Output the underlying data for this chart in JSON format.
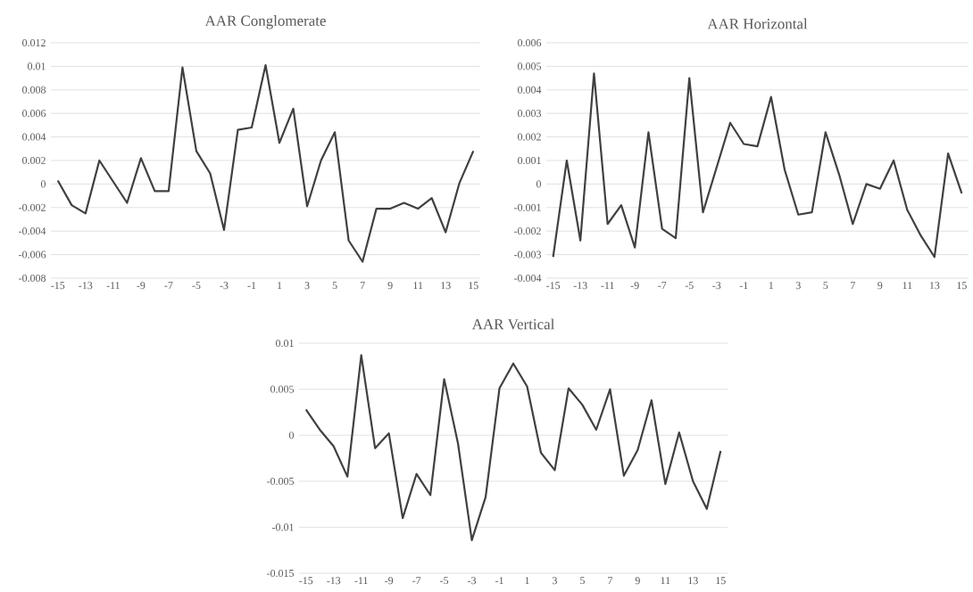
{
  "chart_data": [
    {
      "type": "line",
      "title": "AAR Conglomerate",
      "categories": [
        "-15",
        null,
        "-13",
        null,
        "-11",
        null,
        "-9",
        null,
        "-7",
        null,
        "-5",
        null,
        "-3",
        null,
        "-1",
        null,
        "1",
        null,
        "3",
        null,
        "5",
        null,
        "7",
        null,
        "9",
        null,
        "11",
        null,
        "13",
        null,
        "15"
      ],
      "values": [
        0.0003,
        -0.0018,
        -0.0025,
        0.002,
        0.0002,
        -0.0016,
        0.0022,
        -0.0006,
        -0.0006,
        0.0099,
        0.0028,
        0.0009,
        -0.0039,
        0.0046,
        0.0048,
        0.0101,
        0.0035,
        0.0064,
        -0.0019,
        0.002,
        0.0044,
        -0.0048,
        -0.0066,
        -0.0021,
        -0.0021,
        -0.0016,
        -0.0021,
        -0.0012,
        -0.0041,
        0.0001,
        0.0028
      ],
      "color": "#404040",
      "ylim": [
        -0.008,
        0.012
      ],
      "yticks": [
        -0.008,
        -0.006,
        -0.004,
        -0.002,
        0,
        0.002,
        0.004,
        0.006,
        0.008,
        0.01,
        0.012
      ],
      "grid": "y"
    },
    {
      "type": "line",
      "title": "AAR Horizontal",
      "categories": [
        "-15",
        null,
        "-13",
        null,
        "-11",
        null,
        "-9",
        null,
        "-7",
        null,
        "-5",
        null,
        "-3",
        null,
        "-1",
        null,
        "1",
        null,
        "3",
        null,
        "5",
        null,
        "7",
        null,
        "9",
        null,
        "11",
        null,
        "13",
        null,
        "15"
      ],
      "values": [
        -0.0031,
        0.001,
        -0.0024,
        0.0047,
        -0.0017,
        -0.0009,
        -0.0027,
        0.0022,
        -0.0019,
        -0.0023,
        0.0045,
        -0.0012,
        0.0007,
        0.0026,
        0.0017,
        0.0016,
        0.0037,
        0.0006,
        -0.0013,
        -0.0012,
        0.0022,
        0.0004,
        -0.0017,
        0,
        -0.0002,
        0.001,
        -0.0011,
        -0.0022,
        -0.0031,
        0.0013,
        -0.0004
      ],
      "color": "#404040",
      "ylim": [
        -0.004,
        0.006
      ],
      "yticks": [
        -0.004,
        -0.003,
        -0.002,
        -0.001,
        0,
        0.001,
        0.002,
        0.003,
        0.004,
        0.005,
        0.006
      ],
      "grid": "y"
    },
    {
      "type": "line",
      "title": "AAR Vertical",
      "categories": [
        "-15",
        null,
        "-13",
        null,
        "-11",
        null,
        "-9",
        null,
        "-7",
        null,
        "-5",
        null,
        "-3",
        null,
        "-1",
        null,
        "1",
        null,
        "3",
        null,
        "5",
        null,
        "7",
        null,
        "9",
        null,
        "11",
        null,
        "13",
        null,
        "15"
      ],
      "values": [
        0.0028,
        0.0006,
        -0.0012,
        -0.0045,
        0.0087,
        -0.0014,
        0.0002,
        -0.009,
        -0.0042,
        -0.0065,
        0.0061,
        -0.0009,
        -0.0114,
        -0.0067,
        0.0051,
        0.0078,
        0.0053,
        -0.0019,
        -0.0038,
        0.0051,
        0.0033,
        0.0006,
        0.005,
        -0.0044,
        -0.0016,
        0.0038,
        -0.0053,
        0.0003,
        -0.005,
        -0.008,
        -0.0017
      ],
      "color": "#404040",
      "ylim": [
        -0.015,
        0.01
      ],
      "yticks": [
        -0.015,
        -0.01,
        -0.005,
        0,
        0.005,
        0.01
      ],
      "grid": "y"
    }
  ]
}
